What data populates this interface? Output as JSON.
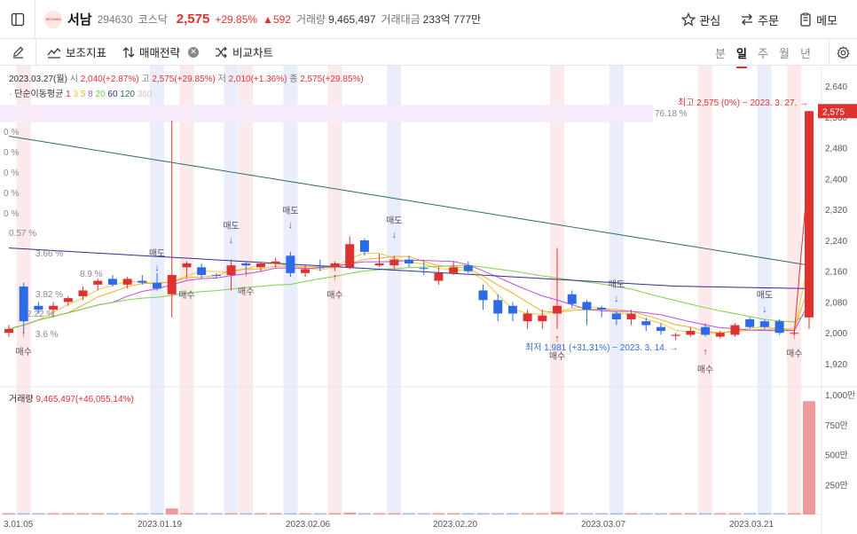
{
  "header": {
    "stock_name": "서남",
    "code": "294630",
    "market": "코스닥",
    "price": "2,575",
    "change_pct": "+29.85%",
    "change_amt": "592",
    "volume_label": "거래량",
    "volume": "9,465,497",
    "value_label": "거래대금",
    "value": "233억 777만",
    "actions": {
      "watch": "관심",
      "order": "주문",
      "memo": "메모"
    }
  },
  "toolbar": {
    "indicators": "보조지표",
    "strategy": "매매전략",
    "compare": "비교차트",
    "periods": [
      "분",
      "일",
      "주",
      "월",
      "년"
    ],
    "active_period": "일"
  },
  "info": {
    "date": "2023.03.27(월)",
    "open_label": "시",
    "open": "2,040",
    "open_pct": "(+2.87%)",
    "high_label": "고",
    "high": "2,575",
    "high_pct": "(+29.85%)",
    "low_label": "저",
    "low": "2,010",
    "low_pct": "(+1.36%)",
    "close_label": "종",
    "close": "2,575",
    "close_pct": "(+29.85%)"
  },
  "ma": {
    "label": "단순이동평균",
    "periods": [
      "1",
      "3",
      "5",
      "8",
      "20",
      "60",
      "120",
      "360"
    ],
    "colors": [
      "#e03131",
      "#f5c542",
      "#e8b020",
      "#c04ce0",
      "#7bd04a",
      "#2f2f8f",
      "#2f6f4f",
      "#c9c9c9"
    ]
  },
  "volume_info": {
    "label": "거래량",
    "value": "9,465,497",
    "pct": "(+46,055.14%)"
  },
  "price_axis": [
    "2,640",
    "2,560",
    "2,480",
    "2,400",
    "2,320",
    "2,240",
    "2,160",
    "2,080",
    "2,000",
    "1,920"
  ],
  "volume_axis": [
    "1,000만",
    "750만",
    "500만",
    "250만"
  ],
  "date_axis": [
    "3.01.05",
    "2023.01.19",
    "2023.02.06",
    "2023.02.20",
    "2023.03.07",
    "2023.03.21"
  ],
  "current_price_tag": "2,575",
  "annotations": {
    "high": "최고 2,575 (0%) − 2023. 3. 27. →",
    "low": "최저 1,981 (+31.31%) − 2023. 3. 14. →",
    "pct_left": [
      "0 %",
      "0 %",
      "0 %",
      "0 %",
      "0 %",
      "0.57 %",
      "3.66 %",
      "8.9 %",
      "3.82 %",
      "2.22 %",
      "3.6 %"
    ],
    "pct_band": "76.18 %",
    "buy": "매수",
    "sell": "매도"
  },
  "chart_data": {
    "type": "candlestick",
    "ylim": [
      1900,
      2660
    ],
    "candles": [
      {
        "o": 2000,
        "h": 2020,
        "l": 1990,
        "c": 2010
      },
      {
        "o": 2120,
        "h": 2130,
        "l": 2000,
        "c": 2030
      },
      {
        "o": 2070,
        "h": 2080,
        "l": 2050,
        "c": 2060
      },
      {
        "o": 2060,
        "h": 2080,
        "l": 2040,
        "c": 2070
      },
      {
        "o": 2080,
        "h": 2095,
        "l": 2070,
        "c": 2090
      },
      {
        "o": 2095,
        "h": 2120,
        "l": 2085,
        "c": 2110
      },
      {
        "o": 2125,
        "h": 2140,
        "l": 2110,
        "c": 2135
      },
      {
        "o": 2140,
        "h": 2150,
        "l": 2120,
        "c": 2125
      },
      {
        "o": 2125,
        "h": 2145,
        "l": 2115,
        "c": 2140
      },
      {
        "o": 2135,
        "h": 2150,
        "l": 2125,
        "c": 2130
      },
      {
        "o": 2130,
        "h": 2155,
        "l": 2110,
        "c": 2115
      },
      {
        "o": 2100,
        "h": 2550,
        "l": 2040,
        "c": 2150
      },
      {
        "o": 2170,
        "h": 2185,
        "l": 2150,
        "c": 2180
      },
      {
        "o": 2170,
        "h": 2180,
        "l": 2140,
        "c": 2150
      },
      {
        "o": 2150,
        "h": 2155,
        "l": 2140,
        "c": 2148
      },
      {
        "o": 2150,
        "h": 2190,
        "l": 2110,
        "c": 2175
      },
      {
        "o": 2180,
        "h": 2185,
        "l": 2160,
        "c": 2175
      },
      {
        "o": 2170,
        "h": 2185,
        "l": 2160,
        "c": 2180
      },
      {
        "o": 2180,
        "h": 2195,
        "l": 2170,
        "c": 2185
      },
      {
        "o": 2200,
        "h": 2210,
        "l": 2145,
        "c": 2155
      },
      {
        "o": 2155,
        "h": 2175,
        "l": 2145,
        "c": 2165
      },
      {
        "o": 2170,
        "h": 2190,
        "l": 2160,
        "c": 2168
      },
      {
        "o": 2170,
        "h": 2185,
        "l": 2160,
        "c": 2180
      },
      {
        "o": 2170,
        "h": 2250,
        "l": 2165,
        "c": 2230
      },
      {
        "o": 2240,
        "h": 2245,
        "l": 2200,
        "c": 2210
      },
      {
        "o": 2175,
        "h": 2205,
        "l": 2170,
        "c": 2180
      },
      {
        "o": 2175,
        "h": 2200,
        "l": 2165,
        "c": 2190
      },
      {
        "o": 2190,
        "h": 2200,
        "l": 2170,
        "c": 2180
      },
      {
        "o": 2168,
        "h": 2185,
        "l": 2150,
        "c": 2166
      },
      {
        "o": 2135,
        "h": 2170,
        "l": 2125,
        "c": 2155
      },
      {
        "o": 2155,
        "h": 2185,
        "l": 2150,
        "c": 2170
      },
      {
        "o": 2175,
        "h": 2185,
        "l": 2155,
        "c": 2160
      },
      {
        "o": 2110,
        "h": 2125,
        "l": 2060,
        "c": 2085
      },
      {
        "o": 2085,
        "h": 2100,
        "l": 2030,
        "c": 2050
      },
      {
        "o": 2070,
        "h": 2080,
        "l": 2030,
        "c": 2050
      },
      {
        "o": 2030,
        "h": 2060,
        "l": 2010,
        "c": 2050
      },
      {
        "o": 2030,
        "h": 2060,
        "l": 2010,
        "c": 2045
      },
      {
        "o": 2050,
        "h": 2220,
        "l": 2010,
        "c": 2070
      },
      {
        "o": 2100,
        "h": 2110,
        "l": 2065,
        "c": 2075
      },
      {
        "o": 2080,
        "h": 2085,
        "l": 2020,
        "c": 2060
      },
      {
        "o": 2065,
        "h": 2070,
        "l": 2040,
        "c": 2060
      },
      {
        "o": 2050,
        "h": 2055,
        "l": 2020,
        "c": 2035
      },
      {
        "o": 2035,
        "h": 2060,
        "l": 2020,
        "c": 2050
      },
      {
        "o": 2030,
        "h": 2040,
        "l": 2005,
        "c": 2020
      },
      {
        "o": 2015,
        "h": 2025,
        "l": 1995,
        "c": 2005
      },
      {
        "o": 1992,
        "h": 2000,
        "l": 1981,
        "c": 1995
      },
      {
        "o": 1995,
        "h": 2015,
        "l": 1990,
        "c": 2005
      },
      {
        "o": 2015,
        "h": 2025,
        "l": 1990,
        "c": 1995
      },
      {
        "o": 1990,
        "h": 2005,
        "l": 1985,
        "c": 2000
      },
      {
        "o": 1995,
        "h": 2025,
        "l": 1990,
        "c": 2020
      },
      {
        "o": 2035,
        "h": 2040,
        "l": 2010,
        "c": 2015
      },
      {
        "o": 2030,
        "h": 2035,
        "l": 2010,
        "c": 2015
      },
      {
        "o": 2030,
        "h": 2035,
        "l": 1995,
        "c": 2000
      },
      {
        "o": 2000,
        "h": 2005,
        "l": 1995,
        "c": 2000
      },
      {
        "o": 2040,
        "h": 2575,
        "l": 2010,
        "c": 2575
      }
    ],
    "volumes": [
      0.9,
      0.6,
      0.5,
      0.4,
      0.4,
      0.5,
      0.6,
      0.5,
      0.4,
      0.4,
      0.5,
      5.0,
      0.8,
      0.6,
      0.4,
      0.5,
      0.4,
      0.4,
      0.4,
      0.7,
      0.4,
      0.4,
      0.4,
      1.6,
      0.8,
      0.5,
      0.4,
      0.4,
      0.4,
      0.4,
      0.4,
      0.4,
      1.2,
      1.1,
      0.8,
      0.6,
      0.5,
      2.0,
      0.7,
      0.6,
      0.5,
      0.4,
      0.4,
      0.4,
      0.4,
      0.5,
      0.4,
      0.4,
      0.4,
      0.5,
      0.4,
      0.4,
      0.4,
      0.4,
      94.65
    ],
    "volume_unit": "만"
  }
}
